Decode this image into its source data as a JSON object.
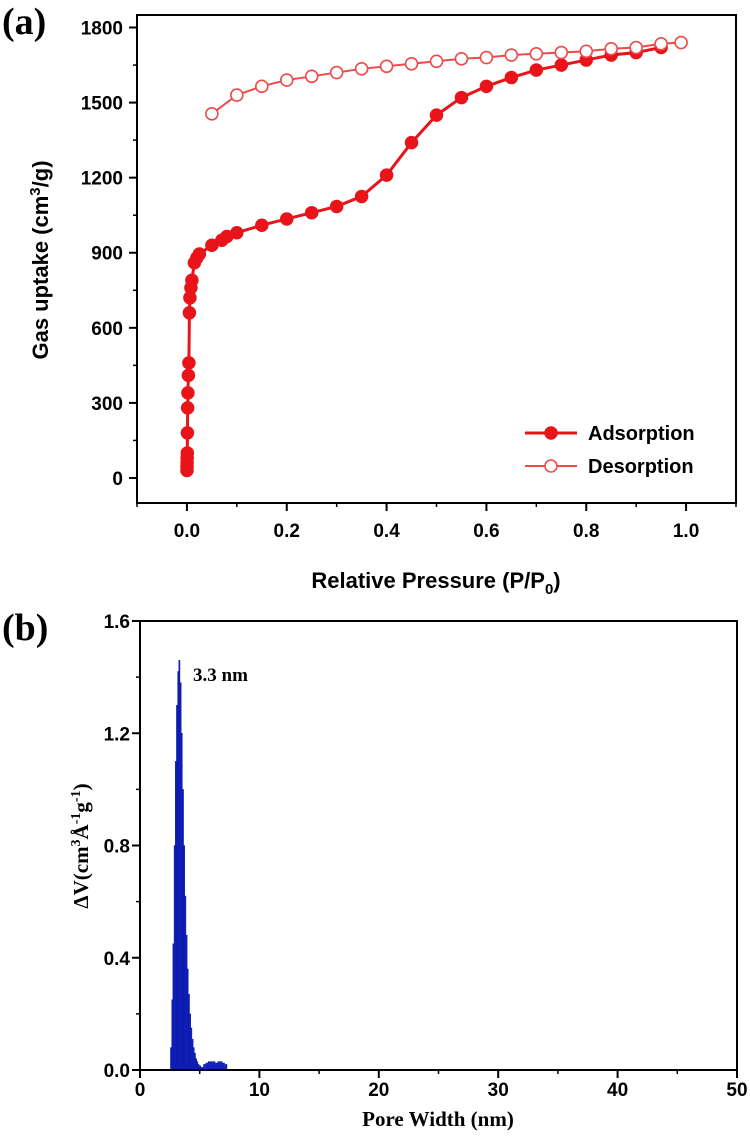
{
  "panels": {
    "a": {
      "label": "(a)"
    },
    "b": {
      "label": "(b)"
    }
  },
  "colors": {
    "adsorption": "#e8141a",
    "desorption": "#ee4a4a",
    "bars": "#1020c8",
    "axis": "#000000"
  },
  "chart_data": [
    {
      "type": "line",
      "panel": "a",
      "xlabel": "Relative Pressure (P/P0)",
      "ylabel": "Gas uptake (cm3/g)",
      "xlim": [
        -0.1,
        1.1
      ],
      "ylim": [
        -100,
        1850
      ],
      "xticks": [
        "0.0",
        "0.2",
        "0.4",
        "0.6",
        "0.8",
        "1.0"
      ],
      "yticks": [
        "0",
        "300",
        "600",
        "900",
        "1200",
        "1500",
        "1800"
      ],
      "legend_position": "bottom-right",
      "series": [
        {
          "name": "Adsorption",
          "marker": "filled-circle",
          "x": [
            0.0001,
            0.0002,
            0.0003,
            0.0005,
            0.0008,
            0.001,
            0.0015,
            0.002,
            0.003,
            0.004,
            0.005,
            0.006,
            0.008,
            0.01,
            0.015,
            0.02,
            0.025,
            0.05,
            0.07,
            0.08,
            0.1,
            0.15,
            0.2,
            0.25,
            0.3,
            0.35,
            0.4,
            0.45,
            0.5,
            0.55,
            0.6,
            0.65,
            0.7,
            0.75,
            0.8,
            0.85,
            0.9,
            0.95
          ],
          "y": [
            30,
            45,
            60,
            80,
            100,
            180,
            280,
            340,
            410,
            460,
            660,
            720,
            760,
            790,
            860,
            880,
            895,
            930,
            950,
            965,
            980,
            1010,
            1035,
            1060,
            1085,
            1125,
            1210,
            1340,
            1450,
            1520,
            1565,
            1600,
            1630,
            1650,
            1670,
            1690,
            1700,
            1720
          ]
        },
        {
          "name": "Desorption",
          "marker": "open-circle",
          "x": [
            0.05,
            0.1,
            0.15,
            0.2,
            0.25,
            0.3,
            0.35,
            0.4,
            0.45,
            0.5,
            0.55,
            0.6,
            0.65,
            0.7,
            0.75,
            0.8,
            0.85,
            0.9,
            0.95,
            0.99
          ],
          "y": [
            1455,
            1530,
            1565,
            1590,
            1605,
            1620,
            1635,
            1645,
            1655,
            1665,
            1675,
            1680,
            1690,
            1695,
            1700,
            1705,
            1715,
            1720,
            1735,
            1740
          ]
        }
      ]
    },
    {
      "type": "bar",
      "panel": "b",
      "xlabel": "Pore Width (nm)",
      "ylabel": "ΔV(cm3Å-1g-1)",
      "xlim": [
        0,
        50
      ],
      "ylim": [
        0,
        1.6
      ],
      "xticks": [
        "0",
        "10",
        "20",
        "30",
        "40",
        "50"
      ],
      "yticks": [
        "0.0",
        "0.4",
        "0.8",
        "1.2",
        "1.6"
      ],
      "annotation": "3.3 nm",
      "x": [
        2.6,
        2.7,
        2.8,
        2.9,
        3.0,
        3.1,
        3.2,
        3.3,
        3.4,
        3.5,
        3.6,
        3.7,
        3.8,
        3.9,
        4.0,
        4.1,
        4.2,
        4.3,
        4.4,
        4.5,
        4.6,
        4.7,
        4.8,
        4.9,
        5.0,
        5.2,
        5.4,
        5.6,
        5.8,
        6.0,
        6.2,
        6.4,
        6.6,
        6.8,
        7.0,
        7.2
      ],
      "values": [
        0.08,
        0.25,
        0.45,
        0.8,
        1.1,
        1.3,
        1.42,
        1.46,
        1.38,
        1.2,
        1.0,
        0.8,
        0.62,
        0.48,
        0.36,
        0.27,
        0.2,
        0.15,
        0.11,
        0.08,
        0.06,
        0.04,
        0.03,
        0.02,
        0.015,
        0.01,
        0.02,
        0.025,
        0.03,
        0.03,
        0.03,
        0.025,
        0.03,
        0.03,
        0.025,
        0.02
      ]
    }
  ]
}
